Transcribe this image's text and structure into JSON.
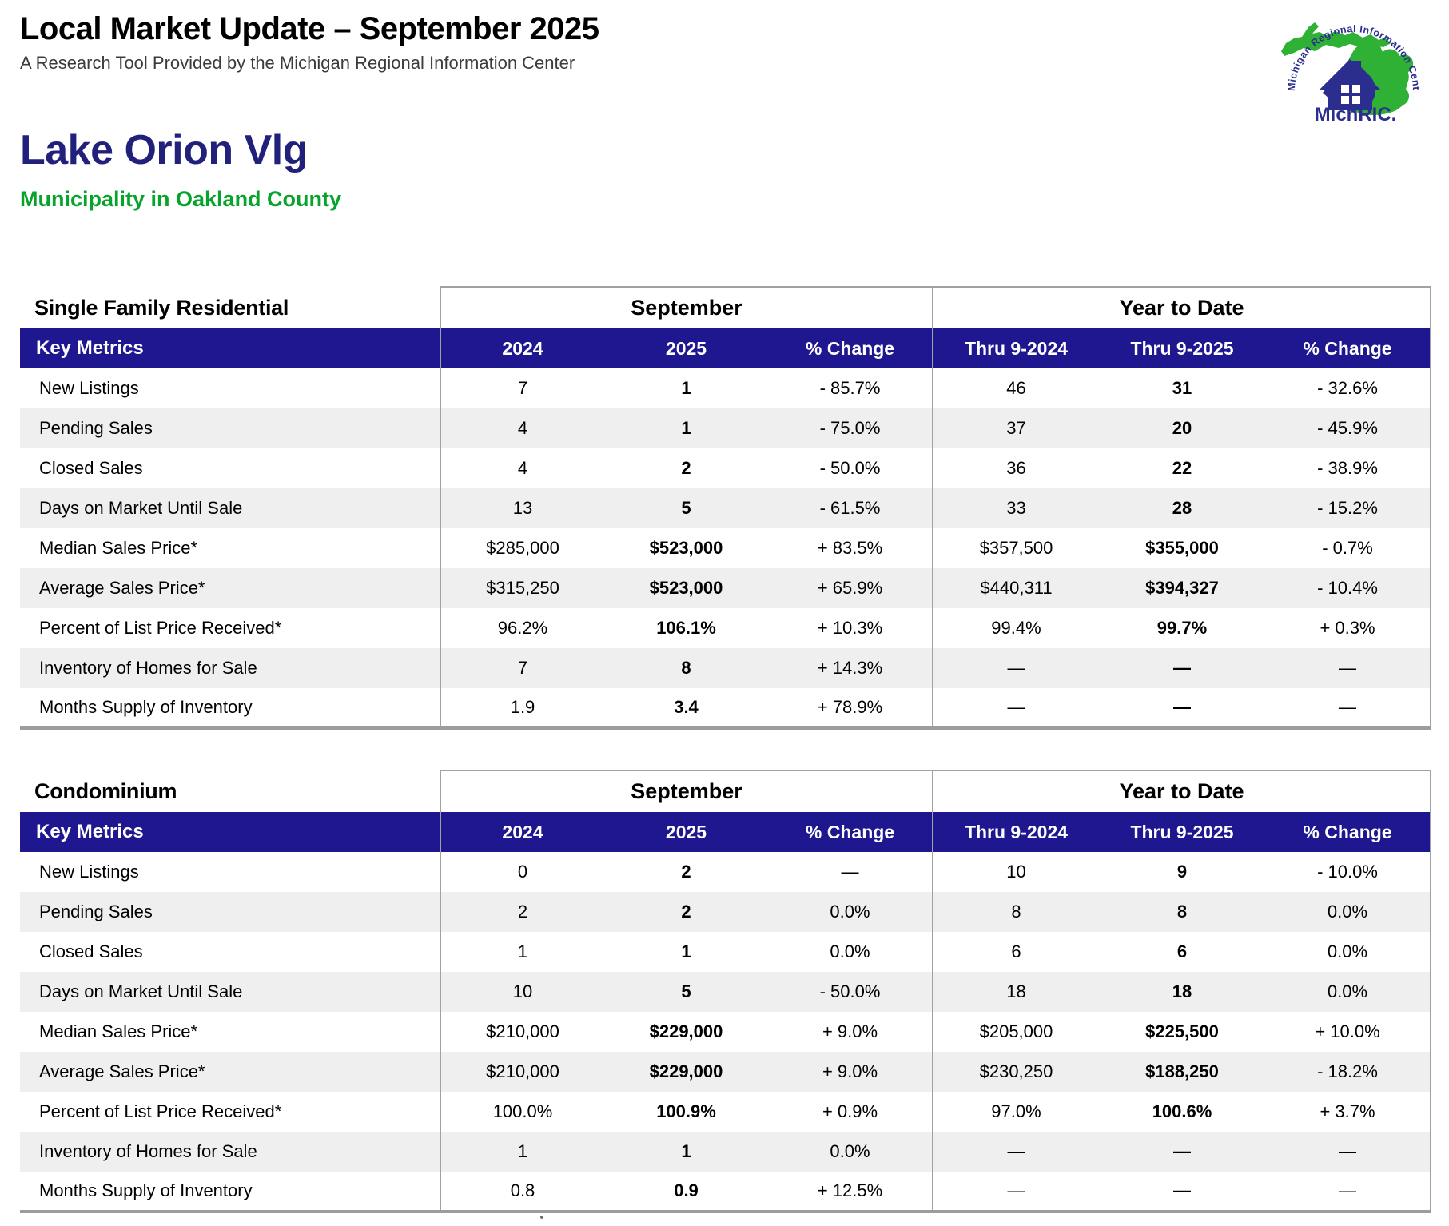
{
  "header": {
    "title": "Local Market Update – September 2025",
    "subtitle": "A Research Tool Provided by the Michigan Regional Information Center"
  },
  "logo": {
    "arc_text": "Michigan Regional Information Center",
    "wordmark": "MichRIC.",
    "icon": "michigan-state-with-house-icon"
  },
  "location": {
    "name": "Lake Orion Vlg",
    "subtitle": "Municipality in Oakland County"
  },
  "labels": {
    "key_metrics": "Key Metrics",
    "september": "September",
    "year_to_date": "Year to Date",
    "col_2024": "2024",
    "col_2025": "2025",
    "col_change": "% Change",
    "col_thru_2024": "Thru 9-2024",
    "col_thru_2025": "Thru 9-2025"
  },
  "colors": {
    "header_band_blue": "#1f178f",
    "place_name_navy": "#21217c",
    "county_green": "#07a32c",
    "alt_row_gray": "#efefef",
    "border_gray": "#a1a1a1",
    "logo_green": "#2eb135",
    "logo_navy": "#2b2d8f"
  },
  "tables": [
    {
      "title": "Single Family Residential",
      "rows": [
        [
          "New Listings",
          "7",
          "1",
          "- 85.7%",
          "46",
          "31",
          "- 32.6%"
        ],
        [
          "Pending Sales",
          "4",
          "1",
          "- 75.0%",
          "37",
          "20",
          "- 45.9%"
        ],
        [
          "Closed Sales",
          "4",
          "2",
          "- 50.0%",
          "36",
          "22",
          "- 38.9%"
        ],
        [
          "Days on Market Until Sale",
          "13",
          "5",
          "- 61.5%",
          "33",
          "28",
          "- 15.2%"
        ],
        [
          "Median Sales Price*",
          "$285,000",
          "$523,000",
          "+ 83.5%",
          "$357,500",
          "$355,000",
          "- 0.7%"
        ],
        [
          "Average Sales Price*",
          "$315,250",
          "$523,000",
          "+ 65.9%",
          "$440,311",
          "$394,327",
          "- 10.4%"
        ],
        [
          "Percent of List Price Received*",
          "96.2%",
          "106.1%",
          "+ 10.3%",
          "99.4%",
          "99.7%",
          "+ 0.3%"
        ],
        [
          "Inventory of Homes for Sale",
          "7",
          "8",
          "+ 14.3%",
          "—",
          "—",
          "—"
        ],
        [
          "Months Supply of Inventory",
          "1.9",
          "3.4",
          "+ 78.9%",
          "—",
          "—",
          "—"
        ]
      ]
    },
    {
      "title": "Condominium",
      "rows": [
        [
          "New Listings",
          "0",
          "2",
          "—",
          "10",
          "9",
          "- 10.0%"
        ],
        [
          "Pending Sales",
          "2",
          "2",
          "0.0%",
          "8",
          "8",
          "0.0%"
        ],
        [
          "Closed Sales",
          "1",
          "1",
          "0.0%",
          "6",
          "6",
          "0.0%"
        ],
        [
          "Days on Market Until Sale",
          "10",
          "5",
          "- 50.0%",
          "18",
          "18",
          "0.0%"
        ],
        [
          "Median Sales Price*",
          "$210,000",
          "$229,000",
          "+ 9.0%",
          "$205,000",
          "$225,500",
          "+ 10.0%"
        ],
        [
          "Average Sales Price*",
          "$210,000",
          "$229,000",
          "+ 9.0%",
          "$230,250",
          "$188,250",
          "- 18.2%"
        ],
        [
          "Percent of List Price Received*",
          "100.0%",
          "100.9%",
          "+ 0.9%",
          "97.0%",
          "100.6%",
          "+ 3.7%"
        ],
        [
          "Inventory of Homes for Sale",
          "1",
          "1",
          "0.0%",
          "—",
          "—",
          "—"
        ],
        [
          "Months Supply of Inventory",
          "0.8",
          "0.9",
          "+ 12.5%",
          "—",
          "—",
          "—"
        ]
      ]
    }
  ]
}
